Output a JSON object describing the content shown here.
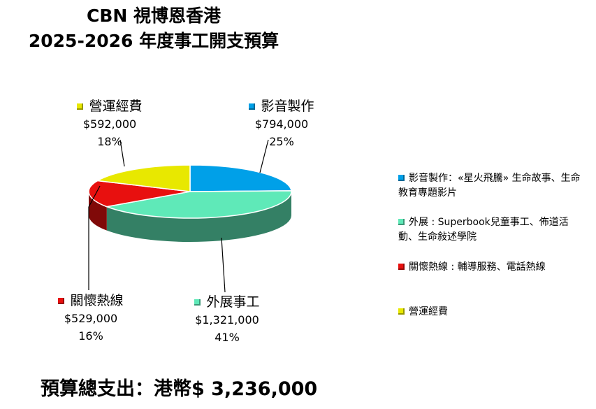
{
  "title_line1": "CBN 視博恩香港",
  "title_line2": "2025-2026 年度事工開支預算",
  "chart_data": {
    "type": "pie",
    "title": "CBN 視博恩香港 2025-2026 年度事工開支預算",
    "slices": [
      {
        "name": "影音製作",
        "amount": "$794,000",
        "value": 794000,
        "percent": "25%",
        "color": "#00a0e8"
      },
      {
        "name": "外展事工",
        "amount": "$1,321,000",
        "value": 1321000,
        "percent": "41%",
        "color": "#5fe9b8"
      },
      {
        "name": "關懷熱線",
        "amount": "$529,000",
        "value": 529000,
        "percent": "16%",
        "color": "#e8100f"
      },
      {
        "name": "營運經費",
        "amount": "$592,000",
        "value": 592000,
        "percent": "18%",
        "color": "#e8e800"
      }
    ]
  },
  "legend": [
    {
      "text": "影音製作：«星火飛騰» 生命故事、生命教育專題影片",
      "color": "#00a0e8"
    },
    {
      "text": "外展 : Superbook兒童事工、佈道活動、生命敍述學院",
      "color": "#5fe9b8"
    },
    {
      "text": "關懷熱線 : 輔導服務、電話熱線",
      "color": "#e8100f"
    },
    {
      "text": "營運經費",
      "color": "#e8e800"
    }
  ],
  "total_label": "預算總支出：港幣$ 3,236,000"
}
